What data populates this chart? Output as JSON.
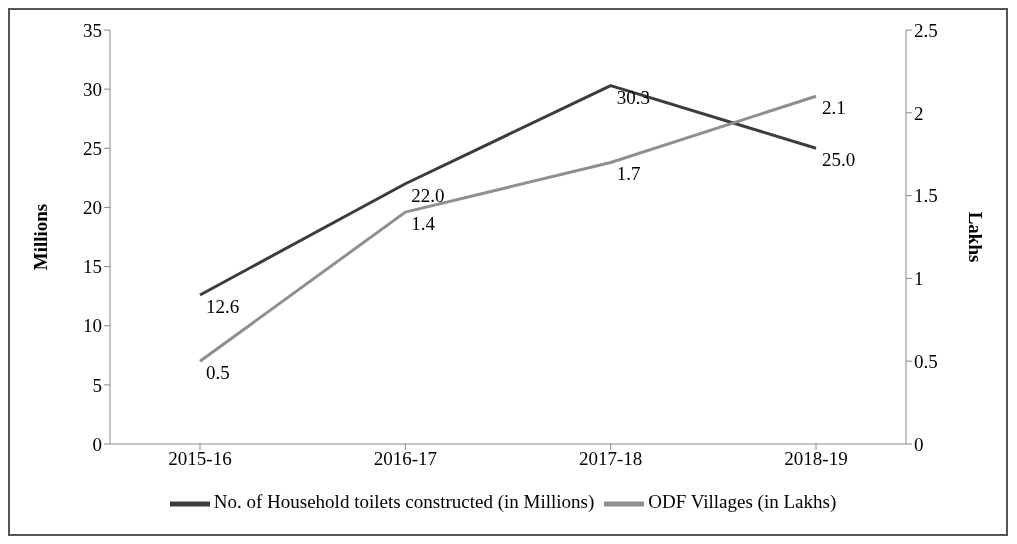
{
  "chart_data": {
    "type": "line",
    "categories": [
      "2015-16",
      "2016-17",
      "2017-18",
      "2018-19"
    ],
    "series": [
      {
        "name": "No. of Household toilets constructed (in Millions)",
        "color": "#3c3c3c",
        "values": [
          12.6,
          22.0,
          30.3,
          25.0
        ],
        "value_labels": [
          "12.6",
          "22.0",
          "30.3",
          "25.0"
        ]
      },
      {
        "name": "ODF Villages (in Lakhs)",
        "color": "#8f8f8f",
        "values": [
          0.5,
          1.4,
          1.7,
          2.1
        ],
        "value_labels": [
          "0.5",
          "1.4",
          "1.7",
          "2.1"
        ],
        "axis": "y2"
      }
    ],
    "ylabel": "Millions",
    "y2label": "Lakhs",
    "ylim": [
      0,
      35
    ],
    "yticks": [
      0,
      5,
      10,
      15,
      20,
      25,
      30,
      35
    ],
    "y2lim": [
      0,
      2.5
    ],
    "y2ticks": [
      0,
      0.5,
      1,
      1.5,
      2,
      2.5
    ],
    "grid": false,
    "legend": "bottom",
    "marker": "none",
    "line_style": "solid"
  }
}
